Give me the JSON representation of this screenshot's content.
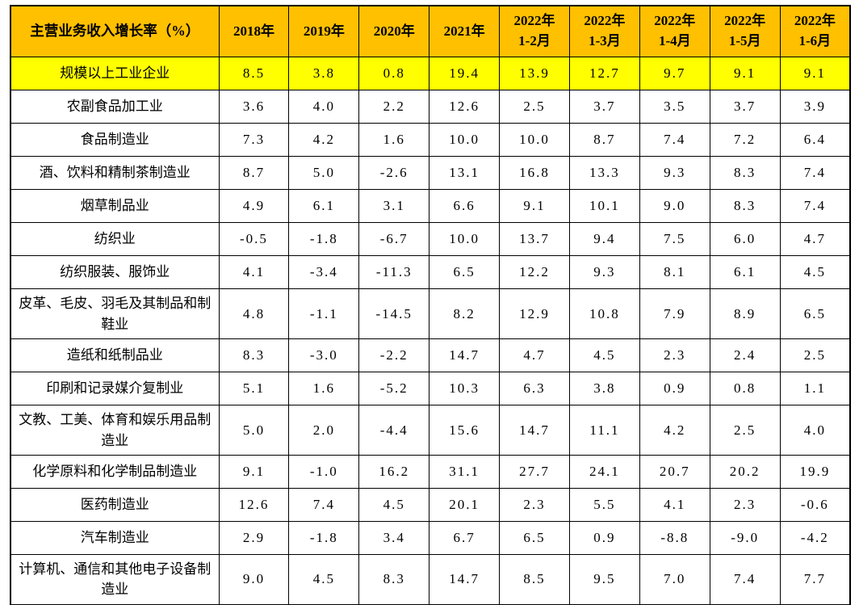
{
  "colors": {
    "header_bg": "#FFC000",
    "highlight_bg": "#FFFF00",
    "border": "#000000",
    "text": "#000000",
    "background": "#FFFFFF"
  },
  "table": {
    "title": "主营业务收入增长率（%）",
    "columns": [
      {
        "id": "2018",
        "lines": [
          "2018年"
        ]
      },
      {
        "id": "2019",
        "lines": [
          "2019年"
        ]
      },
      {
        "id": "2020",
        "lines": [
          "2020年"
        ]
      },
      {
        "id": "2021",
        "lines": [
          "2021年"
        ]
      },
      {
        "id": "2022-1-2",
        "lines": [
          "2022年",
          "1-2月"
        ]
      },
      {
        "id": "2022-1-3",
        "lines": [
          "2022年",
          "1-3月"
        ]
      },
      {
        "id": "2022-1-4",
        "lines": [
          "2022年",
          "1-4月"
        ]
      },
      {
        "id": "2022-1-5",
        "lines": [
          "2022年",
          "1-5月"
        ]
      },
      {
        "id": "2022-1-6",
        "lines": [
          "2022年",
          "1-6月"
        ]
      }
    ],
    "rows": [
      {
        "label": "规模以上工业企业",
        "highlight": true,
        "tall": false,
        "values": [
          "8.5",
          "3.8",
          "0.8",
          "19.4",
          "13.9",
          "12.7",
          "9.7",
          "9.1",
          "9.1"
        ]
      },
      {
        "label": "农副食品加工业",
        "highlight": false,
        "tall": false,
        "values": [
          "3.6",
          "4.0",
          "2.2",
          "12.6",
          "2.5",
          "3.7",
          "3.5",
          "3.7",
          "3.9"
        ]
      },
      {
        "label": "食品制造业",
        "highlight": false,
        "tall": false,
        "values": [
          "7.3",
          "4.2",
          "1.6",
          "10.0",
          "10.0",
          "8.7",
          "7.4",
          "7.2",
          "6.4"
        ]
      },
      {
        "label": "酒、饮料和精制茶制造业",
        "highlight": false,
        "tall": false,
        "values": [
          "8.7",
          "5.0",
          "-2.6",
          "13.1",
          "16.8",
          "13.3",
          "9.3",
          "8.3",
          "7.4"
        ]
      },
      {
        "label": "烟草制品业",
        "highlight": false,
        "tall": false,
        "values": [
          "4.9",
          "6.1",
          "3.1",
          "6.6",
          "9.1",
          "10.1",
          "9.0",
          "8.3",
          "7.4"
        ]
      },
      {
        "label": "纺织业",
        "highlight": false,
        "tall": false,
        "values": [
          "-0.5",
          "-1.8",
          "-6.7",
          "10.0",
          "13.7",
          "9.4",
          "7.5",
          "6.0",
          "4.7"
        ]
      },
      {
        "label": "纺织服装、服饰业",
        "highlight": false,
        "tall": false,
        "values": [
          "4.1",
          "-3.4",
          "-11.3",
          "6.5",
          "12.2",
          "9.3",
          "8.1",
          "6.1",
          "4.5"
        ]
      },
      {
        "label": "皮革、毛皮、羽毛及其制品和制鞋业",
        "highlight": false,
        "tall": true,
        "values": [
          "4.8",
          "-1.1",
          "-14.5",
          "8.2",
          "12.9",
          "10.8",
          "7.9",
          "8.9",
          "6.5"
        ]
      },
      {
        "label": "造纸和纸制品业",
        "highlight": false,
        "tall": false,
        "values": [
          "8.3",
          "-3.0",
          "-2.2",
          "14.7",
          "4.7",
          "4.5",
          "2.3",
          "2.4",
          "2.5"
        ]
      },
      {
        "label": "印刷和记录媒介复制业",
        "highlight": false,
        "tall": false,
        "values": [
          "5.1",
          "1.6",
          "-5.2",
          "10.3",
          "6.3",
          "3.8",
          "0.9",
          "0.8",
          "1.1"
        ]
      },
      {
        "label": "文教、工美、体育和娱乐用品制造业",
        "highlight": false,
        "tall": true,
        "values": [
          "5.0",
          "2.0",
          "-4.4",
          "15.6",
          "14.7",
          "11.1",
          "4.2",
          "2.5",
          "4.0"
        ]
      },
      {
        "label": "化学原料和化学制品制造业",
        "highlight": false,
        "tall": false,
        "values": [
          "9.1",
          "-1.0",
          "16.2",
          "31.1",
          "27.7",
          "24.1",
          "20.7",
          "20.2",
          "19.9"
        ]
      },
      {
        "label": "医药制造业",
        "highlight": false,
        "tall": false,
        "values": [
          "12.6",
          "7.4",
          "4.5",
          "20.1",
          "2.3",
          "5.5",
          "4.1",
          "2.3",
          "-0.6"
        ]
      },
      {
        "label": "汽车制造业",
        "highlight": false,
        "tall": false,
        "values": [
          "2.9",
          "-1.8",
          "3.4",
          "6.7",
          "6.5",
          "0.9",
          "-8.8",
          "-9.0",
          "-4.2"
        ]
      },
      {
        "label": "计算机、通信和其他电子设备制造业",
        "highlight": false,
        "tall": true,
        "values": [
          "9.0",
          "4.5",
          "8.3",
          "14.7",
          "8.5",
          "9.5",
          "7.0",
          "7.4",
          "7.7"
        ]
      }
    ]
  },
  "chart_data": {
    "type": "table",
    "title": "主营业务收入增长率（%）",
    "categories": [
      "2018年",
      "2019年",
      "2020年",
      "2021年",
      "2022年1-2月",
      "2022年1-3月",
      "2022年1-4月",
      "2022年1-5月",
      "2022年1-6月"
    ],
    "series": [
      {
        "name": "规模以上工业企业",
        "values": [
          8.5,
          3.8,
          0.8,
          19.4,
          13.9,
          12.7,
          9.7,
          9.1,
          9.1
        ]
      },
      {
        "name": "农副食品加工业",
        "values": [
          3.6,
          4.0,
          2.2,
          12.6,
          2.5,
          3.7,
          3.5,
          3.7,
          3.9
        ]
      },
      {
        "name": "食品制造业",
        "values": [
          7.3,
          4.2,
          1.6,
          10.0,
          10.0,
          8.7,
          7.4,
          7.2,
          6.4
        ]
      },
      {
        "name": "酒、饮料和精制茶制造业",
        "values": [
          8.7,
          5.0,
          -2.6,
          13.1,
          16.8,
          13.3,
          9.3,
          8.3,
          7.4
        ]
      },
      {
        "name": "烟草制品业",
        "values": [
          4.9,
          6.1,
          3.1,
          6.6,
          9.1,
          10.1,
          9.0,
          8.3,
          7.4
        ]
      },
      {
        "name": "纺织业",
        "values": [
          -0.5,
          -1.8,
          -6.7,
          10.0,
          13.7,
          9.4,
          7.5,
          6.0,
          4.7
        ]
      },
      {
        "name": "纺织服装、服饰业",
        "values": [
          4.1,
          -3.4,
          -11.3,
          6.5,
          12.2,
          9.3,
          8.1,
          6.1,
          4.5
        ]
      },
      {
        "name": "皮革、毛皮、羽毛及其制品和制鞋业",
        "values": [
          4.8,
          -1.1,
          -14.5,
          8.2,
          12.9,
          10.8,
          7.9,
          8.9,
          6.5
        ]
      },
      {
        "name": "造纸和纸制品业",
        "values": [
          8.3,
          -3.0,
          -2.2,
          14.7,
          4.7,
          4.5,
          2.3,
          2.4,
          2.5
        ]
      },
      {
        "name": "印刷和记录媒介复制业",
        "values": [
          5.1,
          1.6,
          -5.2,
          10.3,
          6.3,
          3.8,
          0.9,
          0.8,
          1.1
        ]
      },
      {
        "name": "文教、工美、体育和娱乐用品制造业",
        "values": [
          5.0,
          2.0,
          -4.4,
          15.6,
          14.7,
          11.1,
          4.2,
          2.5,
          4.0
        ]
      },
      {
        "name": "化学原料和化学制品制造业",
        "values": [
          9.1,
          -1.0,
          16.2,
          31.1,
          27.7,
          24.1,
          20.7,
          20.2,
          19.9
        ]
      },
      {
        "name": "医药制造业",
        "values": [
          12.6,
          7.4,
          4.5,
          20.1,
          2.3,
          5.5,
          4.1,
          2.3,
          -0.6
        ]
      },
      {
        "name": "汽车制造业",
        "values": [
          2.9,
          -1.8,
          3.4,
          6.7,
          6.5,
          0.9,
          -8.8,
          -9.0,
          -4.2
        ]
      },
      {
        "name": "计算机、通信和其他电子设备制造业",
        "values": [
          9.0,
          4.5,
          8.3,
          14.7,
          8.5,
          9.5,
          7.0,
          7.4,
          7.7
        ]
      }
    ]
  }
}
